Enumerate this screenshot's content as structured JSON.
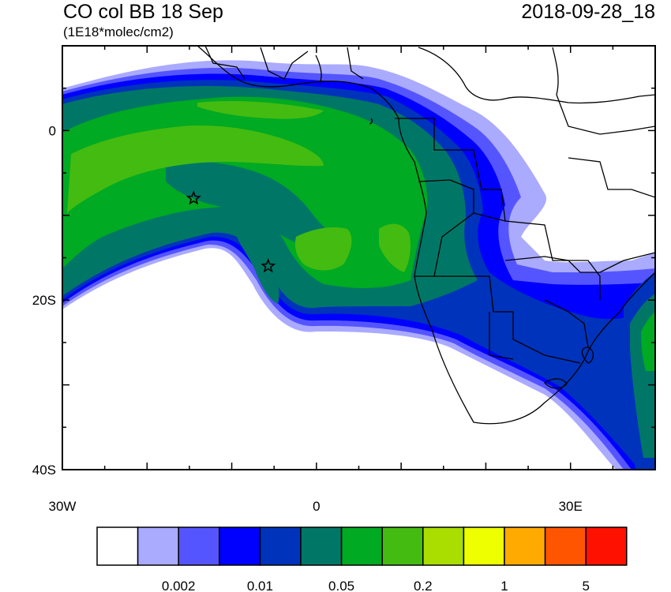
{
  "header": {
    "title": "CO col BB 18 Sep",
    "units": "(1E18*molec/cm2)",
    "valid_time": "2018-09-28_18"
  },
  "map": {
    "lon_range": [
      -30,
      40
    ],
    "lat_range": [
      -40,
      10
    ],
    "markers": [
      {
        "name": "star",
        "lon": -14.5,
        "lat": -8.0
      },
      {
        "name": "star",
        "lon": -5.7,
        "lat": -16.0
      }
    ]
  },
  "axes": {
    "y_labels": [
      {
        "lat": 0,
        "text": "0"
      },
      {
        "lat": -20,
        "text": "20S"
      },
      {
        "lat": -40,
        "text": "40S"
      }
    ],
    "x_labels": [
      {
        "lon": -30,
        "text": "30W"
      },
      {
        "lon": 0,
        "text": "0"
      },
      {
        "lon": 30,
        "text": "30E"
      }
    ]
  },
  "colorbar": {
    "colors": [
      "#ffffff",
      "#aaaaff",
      "#5555ff",
      "#0000ff",
      "#0033bb",
      "#007766",
      "#00aa22",
      "#44bb11",
      "#aadd00",
      "#eeff00",
      "#ffaa00",
      "#ff5500",
      "#ff1100"
    ],
    "labels": [
      {
        "after_box": 2,
        "text": "0.002"
      },
      {
        "after_box": 4,
        "text": "0.01"
      },
      {
        "after_box": 6,
        "text": "0.05"
      },
      {
        "after_box": 8,
        "text": "0.2"
      },
      {
        "after_box": 10,
        "text": "1"
      },
      {
        "after_box": 12,
        "text": "5"
      }
    ]
  }
}
